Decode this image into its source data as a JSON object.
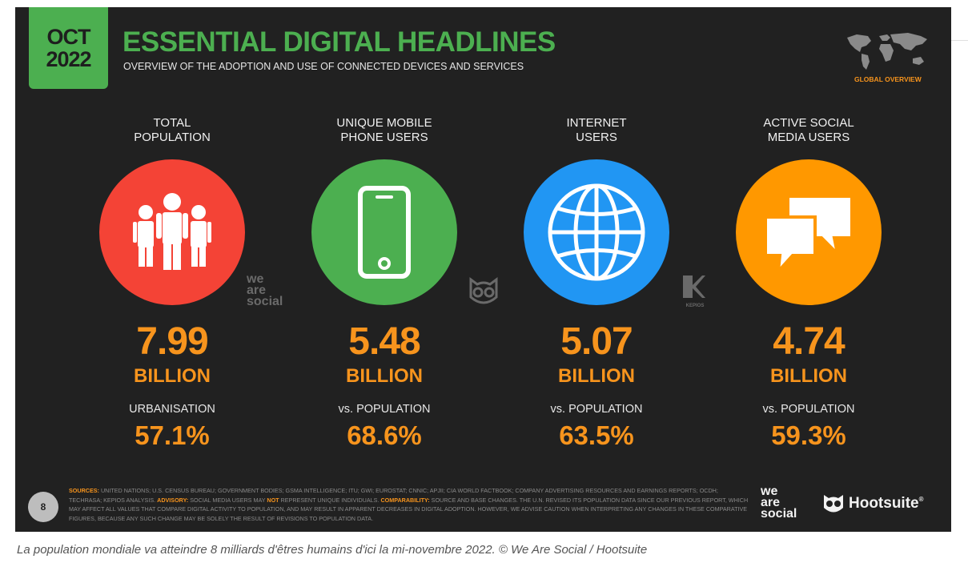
{
  "header": {
    "month": "OCT",
    "year": "2022",
    "title": "ESSENTIAL DIGITAL HEADLINES",
    "subtitle": "OVERVIEW OF THE ADOPTION AND USE OF CONNECTED DEVICES AND SERVICES",
    "section_label": "GLOBAL OVERVIEW"
  },
  "stats": [
    {
      "label_line1": "TOTAL",
      "label_line2": "POPULATION",
      "value": "7.99",
      "unit": "BILLION",
      "sub_label": "URBANISATION",
      "percent": "57.1%",
      "color": "#f44336",
      "icon": "people-icon"
    },
    {
      "label_line1": "UNIQUE MOBILE",
      "label_line2": "PHONE USERS",
      "value": "5.48",
      "unit": "BILLION",
      "sub_label": "vs. POPULATION",
      "percent": "68.6%",
      "color": "#4caf50",
      "icon": "mobile-phone-icon"
    },
    {
      "label_line1": "INTERNET",
      "label_line2": "USERS",
      "value": "5.07",
      "unit": "BILLION",
      "sub_label": "vs. POPULATION",
      "percent": "63.5%",
      "color": "#2196f3",
      "icon": "globe-icon"
    },
    {
      "label_line1": "ACTIVE SOCIAL",
      "label_line2": "MEDIA USERS",
      "value": "4.74",
      "unit": "BILLION",
      "sub_label": "vs. POPULATION",
      "percent": "59.3%",
      "color": "#ff9800",
      "icon": "speech-bubbles-icon"
    }
  ],
  "watermarks": {
    "we": "we",
    "are": "are",
    "social": "social",
    "kepios": "KEPIOS"
  },
  "footer": {
    "page_number": "8",
    "sources_label": "SOURCES:",
    "sources_text": " UNITED NATIONS; U.S. CENSUS BUREAU; GOVERNMENT BODIES; GSMA INTELLIGENCE; ITU; GWI; EUROSTAT; CNNIC; APJII; CIA WORLD FACTBOOK; COMPANY ADVERTISING RESOURCES AND EARNINGS REPORTS; OCDH; TECHRASA; KEPIOS ANALYSIS. ",
    "advisory_label": "ADVISORY:",
    "advisory_text_a": " SOCIAL MEDIA USERS MAY ",
    "advisory_not": "NOT",
    "advisory_text_b": " REPRESENT UNIQUE INDIVIDUALS. ",
    "comparability_label": "COMPARABILITY:",
    "comparability_text": " SOURCE AND BASE CHANGES. THE U.N. REVISED ITS POPULATION DATA SINCE OUR PREVIOUS REPORT, WHICH MAY AFFECT ALL VALUES THAT COMPARE DIGITAL ACTIVITY TO POPULATION, AND MAY RESULT IN APPARENT DECREASES IN DIGITAL ADOPTION. HOWEVER, WE ADVISE CAUTION WHEN INTERPRETING ANY CHANGES IN THESE COMPARATIVE FIGURES, BECAUSE ANY SUCH CHANGE MAY BE SOLELY THE RESULT OF REVISIONS TO POPULATION DATA.",
    "logo_we": "we",
    "logo_are": "are",
    "logo_social": "social",
    "hootsuite": "Hootsuite",
    "registered": "®"
  },
  "caption": "La population mondiale va atteindre 8 milliards d'êtres humains d'ici la mi-novembre 2022. © We Are Social / Hootsuite"
}
